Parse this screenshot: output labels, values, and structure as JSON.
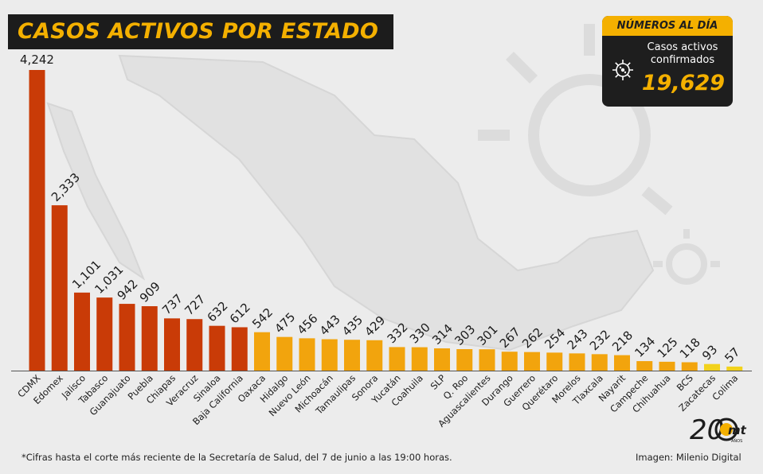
{
  "header": {
    "title": "CASOS ACTIVOS POR ESTADO"
  },
  "kpi": {
    "header": "NÚMEROS AL DÍA",
    "label_line1": "Casos activos",
    "label_line2": "confirmados",
    "value": "19,629",
    "icon": "virus-icon"
  },
  "footer": {
    "note": "*Cifras hasta el corte más reciente de la Secretaría de Salud, del 7 de junio a las 19:00 horas.",
    "credit": "Imagen: Milenio Digital",
    "logo_text": "20",
    "logo_sub": "mt",
    "logo_small": "AÑOS"
  },
  "colors": {
    "high": "#c93b07",
    "mid": "#f2a40d",
    "low": "#f2d21c",
    "dark": "#1c1c1c",
    "accent": "#f4b000",
    "background": "#ececec"
  },
  "chart_data": {
    "type": "bar",
    "title": "CASOS ACTIVOS POR ESTADO",
    "categories": [
      "CDMX",
      "Edomex",
      "Jalisco",
      "Tabasco",
      "Guanajuato",
      "Puebla",
      "Chiapas",
      "Veracruz",
      "Sinaloa",
      "Baja California",
      "Oaxaca",
      "Hidalgo",
      "Nuevo León",
      "Michoacán",
      "Tamaulipas",
      "Sonora",
      "Yucatán",
      "Coahuila",
      "SLP",
      "Q. Roo",
      "Aguascalientes",
      "Durango",
      "Guerrero",
      "Querétaro",
      "Morelos",
      "Tlaxcala",
      "Nayarit",
      "Campeche",
      "Chihuahua",
      "BCS",
      "Zacatecas",
      "Colima"
    ],
    "values": [
      4242,
      2333,
      1101,
      1031,
      942,
      909,
      737,
      727,
      632,
      612,
      542,
      475,
      456,
      443,
      435,
      429,
      332,
      330,
      314,
      303,
      301,
      267,
      262,
      254,
      243,
      232,
      218,
      134,
      125,
      118,
      93,
      57
    ],
    "value_labels": [
      "4,242",
      "2,333",
      "1,101",
      "1,031",
      "942",
      "909",
      "737",
      "727",
      "632",
      "612",
      "542",
      "475",
      "456",
      "443",
      "435",
      "429",
      "332",
      "330",
      "314",
      "303",
      "301",
      "267",
      "262",
      "254",
      "243",
      "232",
      "218",
      "134",
      "125",
      "118",
      "93",
      "57"
    ],
    "color_groups": [
      "high",
      "high",
      "high",
      "high",
      "high",
      "high",
      "high",
      "high",
      "high",
      "high",
      "mid",
      "mid",
      "mid",
      "mid",
      "mid",
      "mid",
      "mid",
      "mid",
      "mid",
      "mid",
      "mid",
      "mid",
      "mid",
      "mid",
      "mid",
      "mid",
      "mid",
      "mid",
      "mid",
      "mid",
      "low",
      "low"
    ],
    "ylim": [
      0,
      4242
    ],
    "grid": false,
    "xlabel": "",
    "ylabel": ""
  }
}
